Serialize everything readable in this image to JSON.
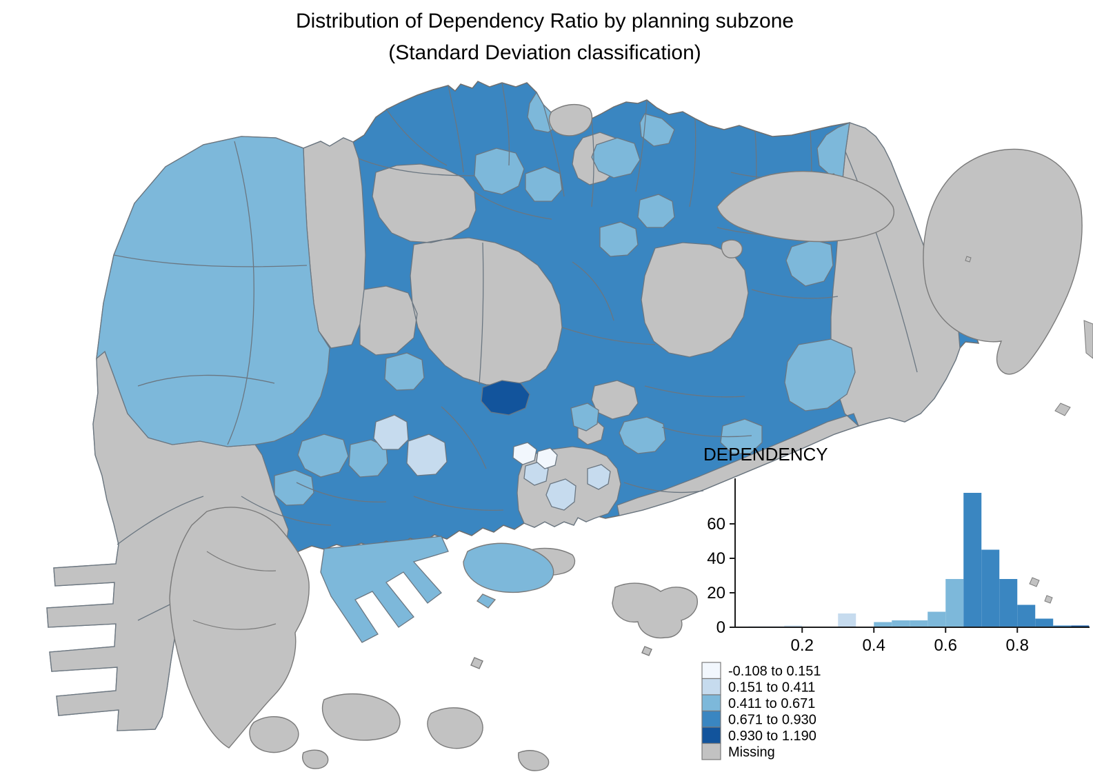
{
  "title": {
    "line1": "Distribution of Dependency Ratio by planning subzone",
    "line2": "(Standard Deviation classification)"
  },
  "palette": {
    "c1": "#f2f7fd",
    "c2": "#c6dbee",
    "c3": "#7db8da",
    "c4": "#3a86c1",
    "c5": "#12549c",
    "missing": "#c2c2c2",
    "border": "#6a7681",
    "coast": "#6e6e6e",
    "island_border": "#7a7a7a"
  },
  "legend": {
    "items": [
      {
        "label": "-0.108 to 0.151",
        "class": "c1"
      },
      {
        "label": "0.151 to 0.411",
        "class": "c2"
      },
      {
        "label": "0.411 to 0.671",
        "class": "c3"
      },
      {
        "label": "0.671 to 0.930",
        "class": "c4"
      },
      {
        "label": "0.930 to 1.190",
        "class": "c5"
      },
      {
        "label": "Missing",
        "class": "missing"
      }
    ]
  },
  "chart_data": {
    "type": "bar",
    "variant": "histogram",
    "title": "DEPENDENCY",
    "xlabel": "",
    "ylabel": "",
    "xlim": [
      0.013,
      1.0
    ],
    "ylim": [
      0,
      80
    ],
    "grid": false,
    "legend_position": "none",
    "x_ticks": [
      {
        "v": 0.2,
        "label": "0.2"
      },
      {
        "v": 0.4,
        "label": "0.4"
      },
      {
        "v": 0.6,
        "label": "0.6"
      },
      {
        "v": 0.8,
        "label": "0.8"
      }
    ],
    "y_ticks": [
      {
        "v": 0,
        "label": "0"
      },
      {
        "v": 20,
        "label": "20"
      },
      {
        "v": 40,
        "label": "40"
      },
      {
        "v": 60,
        "label": "60"
      }
    ],
    "bin_width": 0.05,
    "bins": [
      {
        "x": 0.05,
        "w": 0.05,
        "count": 1,
        "class": "c1"
      },
      {
        "x": 0.1,
        "w": 0.05,
        "count": 1,
        "class": "c1"
      },
      {
        "x": 0.15,
        "w": 0.05,
        "count": 1,
        "class": "c2"
      },
      {
        "x": 0.3,
        "w": 0.05,
        "count": 8,
        "class": "c2"
      },
      {
        "x": 0.4,
        "w": 0.05,
        "count": 3,
        "class": "c3"
      },
      {
        "x": 0.45,
        "w": 0.05,
        "count": 4,
        "class": "c3"
      },
      {
        "x": 0.5,
        "w": 0.05,
        "count": 4,
        "class": "c3"
      },
      {
        "x": 0.55,
        "w": 0.05,
        "count": 9,
        "class": "c3"
      },
      {
        "x": 0.6,
        "w": 0.05,
        "count": 28,
        "class": "c3"
      },
      {
        "x": 0.65,
        "w": 0.05,
        "count": 78,
        "class": "c4"
      },
      {
        "x": 0.7,
        "w": 0.05,
        "count": 45,
        "class": "c4"
      },
      {
        "x": 0.75,
        "w": 0.05,
        "count": 28,
        "class": "c4"
      },
      {
        "x": 0.8,
        "w": 0.05,
        "count": 13,
        "class": "c4"
      },
      {
        "x": 0.85,
        "w": 0.05,
        "count": 5,
        "class": "c4"
      },
      {
        "x": 0.9,
        "w": 0.05,
        "count": 1,
        "class": "c4"
      },
      {
        "x": 0.95,
        "w": 0.05,
        "count": 1,
        "class": "c5"
      }
    ]
  }
}
